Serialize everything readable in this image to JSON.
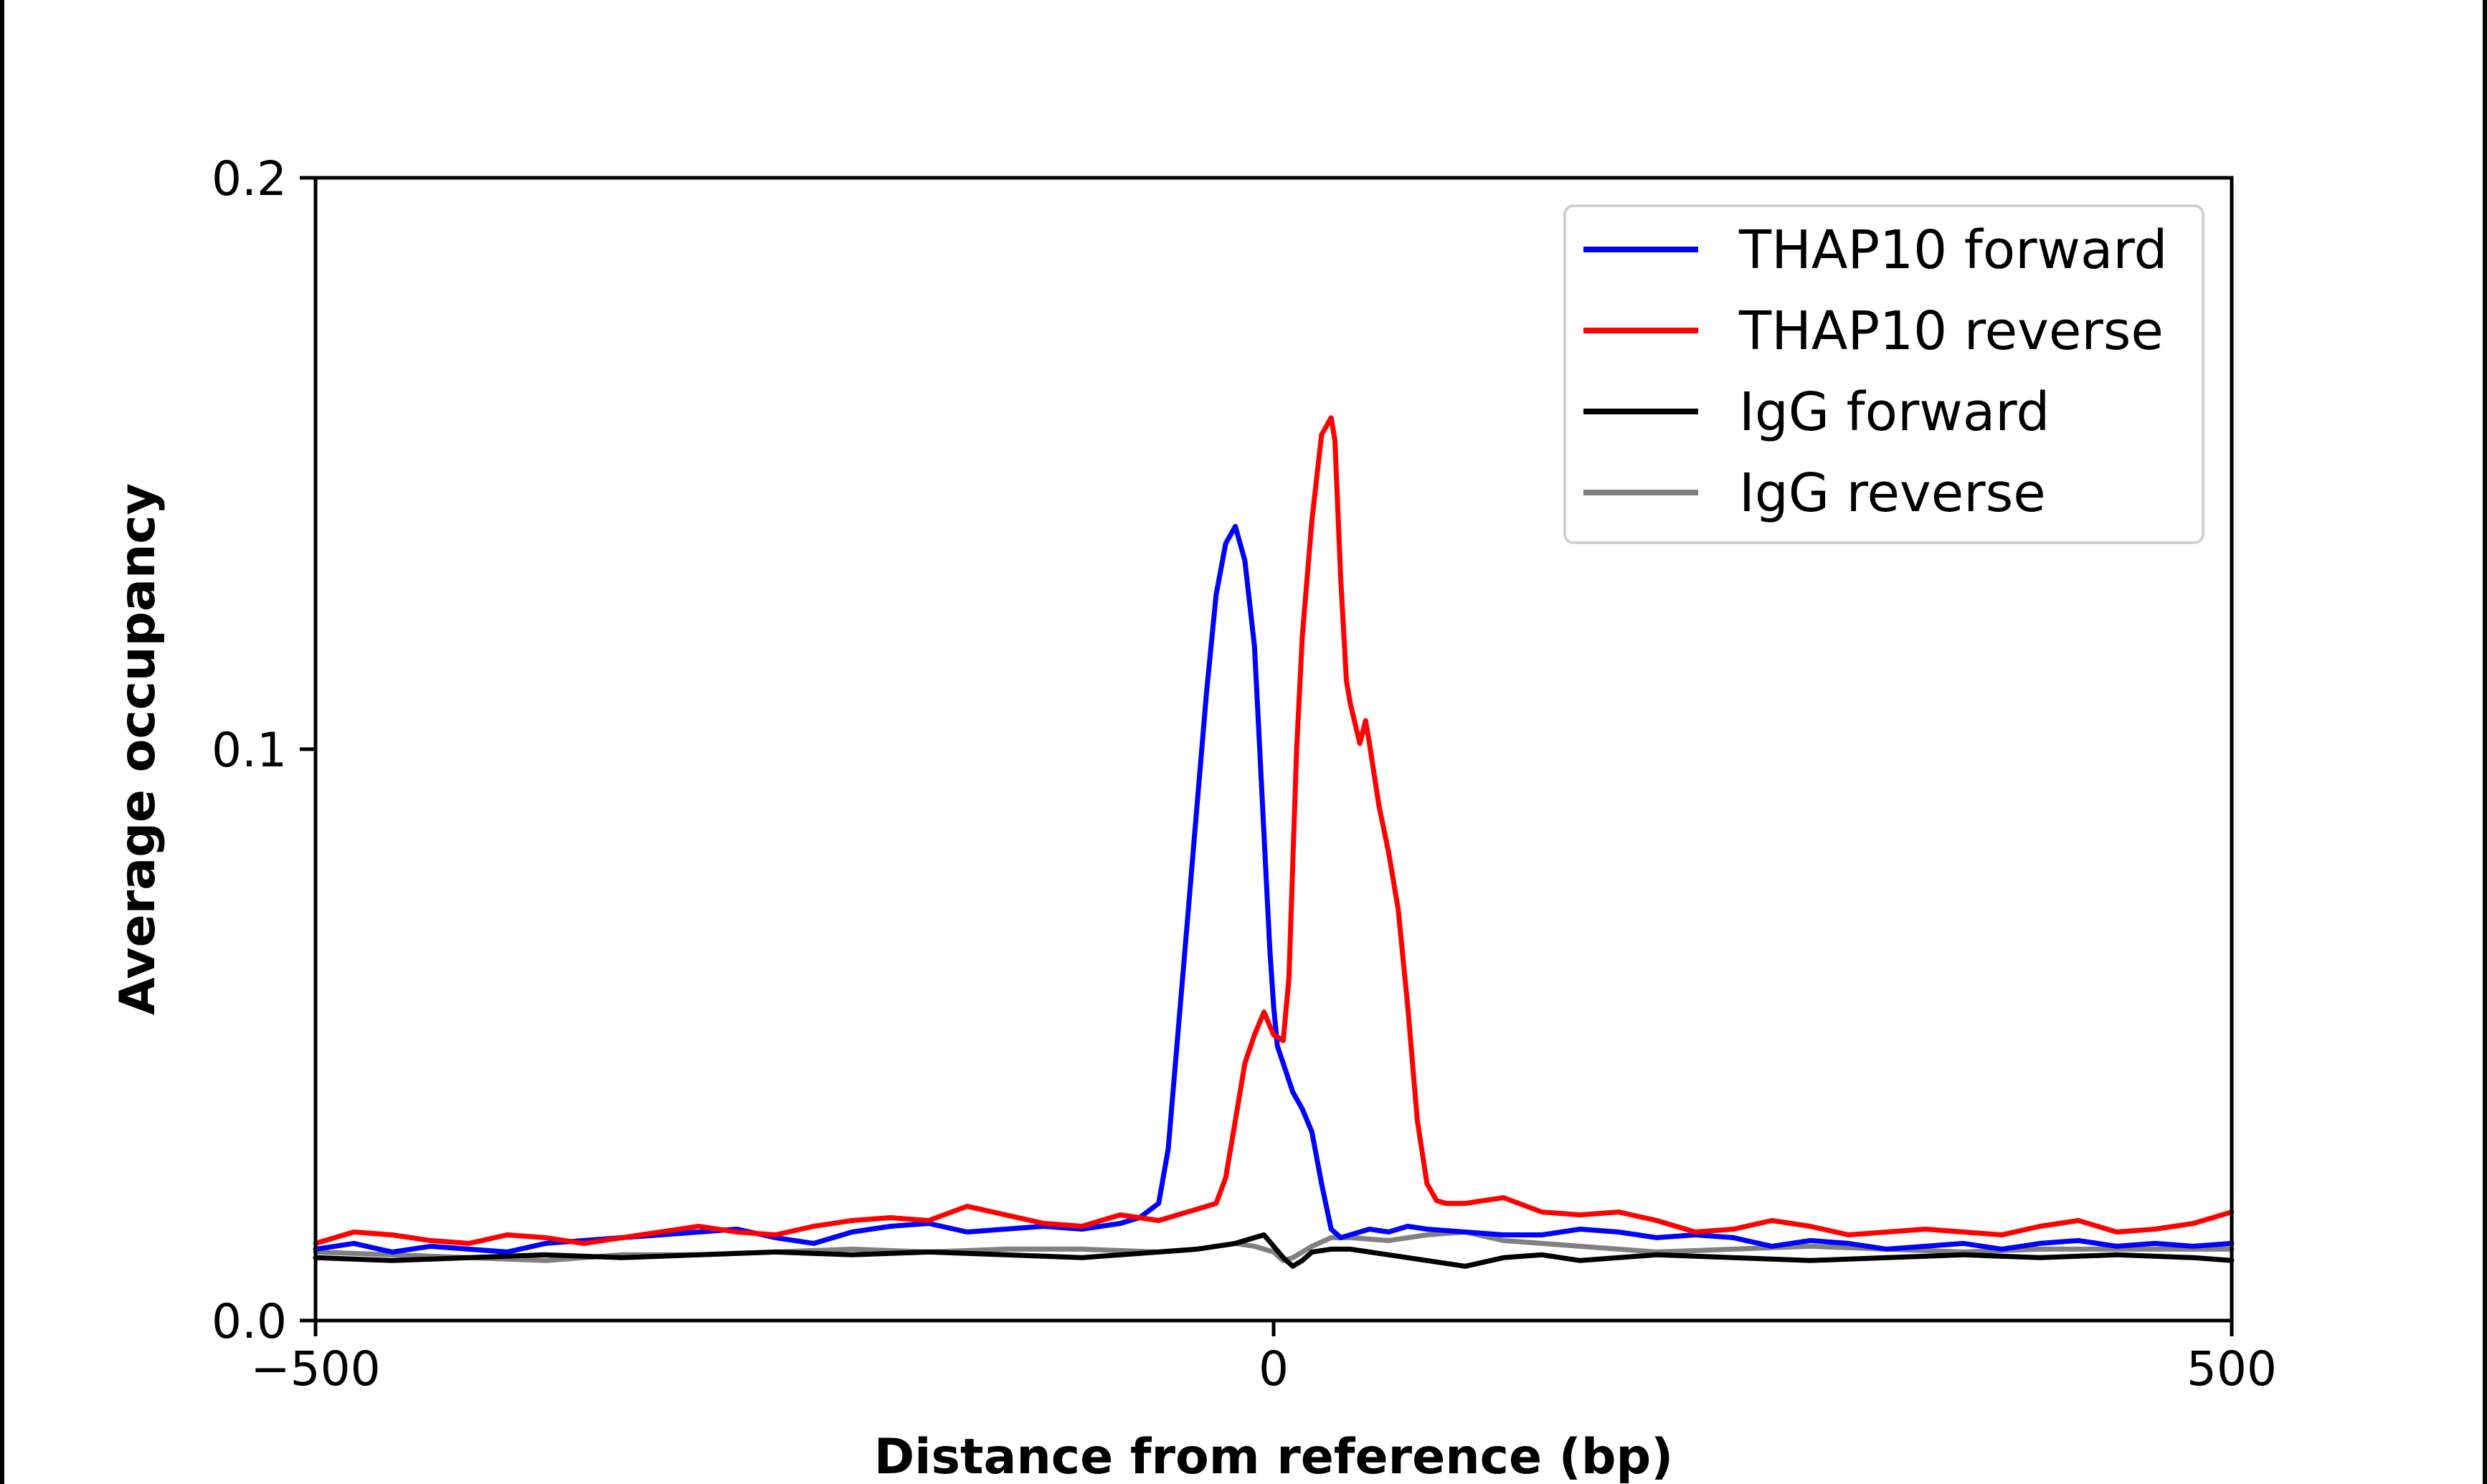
{
  "chart_data": {
    "type": "line",
    "title": "",
    "xlabel": "Distance from reference (bp)",
    "ylabel": "Average occupancy",
    "xlim": [
      -500,
      500
    ],
    "ylim": [
      0,
      0.2
    ],
    "xticks": [
      {
        "value": -500,
        "label": "−500"
      },
      {
        "value": 0,
        "label": "0"
      },
      {
        "value": 500,
        "label": "500"
      }
    ],
    "yticks": [
      {
        "value": 0,
        "label": "0.0"
      },
      {
        "value": 0.1,
        "label": "0.1"
      },
      {
        "value": 0.2,
        "label": "0.2"
      }
    ],
    "grid": false,
    "legend_position": "top-right",
    "series": [
      {
        "name": "THAP10 forward",
        "color": "#0000ff",
        "x": [
          -500,
          -480,
          -460,
          -440,
          -420,
          -400,
          -380,
          -360,
          -340,
          -320,
          -300,
          -280,
          -260,
          -240,
          -220,
          -200,
          -180,
          -160,
          -140,
          -120,
          -100,
          -90,
          -80,
          -70,
          -60,
          -55,
          -50,
          -45,
          -40,
          -35,
          -30,
          -25,
          -20,
          -15,
          -10,
          -8,
          -5,
          -2,
          0,
          2,
          5,
          8,
          10,
          15,
          20,
          25,
          30,
          35,
          40,
          45,
          50,
          60,
          70,
          80,
          100,
          120,
          140,
          160,
          180,
          200,
          220,
          240,
          260,
          280,
          300,
          320,
          340,
          360,
          380,
          400,
          420,
          440,
          460,
          480,
          500
        ],
        "y": [
          0.0125,
          0.0135,
          0.012,
          0.013,
          0.0125,
          0.012,
          0.0135,
          0.014,
          0.0145,
          0.015,
          0.0155,
          0.016,
          0.0145,
          0.0135,
          0.0155,
          0.0165,
          0.017,
          0.0155,
          0.016,
          0.0165,
          0.016,
          0.0165,
          0.017,
          0.018,
          0.0205,
          0.03,
          0.05,
          0.07,
          0.09,
          0.11,
          0.127,
          0.136,
          0.139,
          0.133,
          0.118,
          0.105,
          0.085,
          0.065,
          0.055,
          0.048,
          0.045,
          0.042,
          0.04,
          0.037,
          0.033,
          0.024,
          0.016,
          0.0145,
          0.015,
          0.0155,
          0.016,
          0.0155,
          0.0165,
          0.016,
          0.0155,
          0.015,
          0.015,
          0.016,
          0.0155,
          0.0145,
          0.015,
          0.0145,
          0.013,
          0.014,
          0.0135,
          0.0125,
          0.013,
          0.0135,
          0.0125,
          0.0135,
          0.014,
          0.013,
          0.0135,
          0.013,
          0.0135
        ]
      },
      {
        "name": "THAP10 reverse",
        "color": "#ff0000",
        "x": [
          -500,
          -480,
          -460,
          -440,
          -420,
          -400,
          -380,
          -360,
          -340,
          -320,
          -300,
          -280,
          -260,
          -240,
          -220,
          -200,
          -180,
          -160,
          -140,
          -120,
          -100,
          -90,
          -80,
          -70,
          -60,
          -50,
          -40,
          -30,
          -25,
          -20,
          -15,
          -10,
          -5,
          0,
          5,
          8,
          10,
          12,
          15,
          20,
          25,
          30,
          32,
          35,
          38,
          40,
          45,
          48,
          50,
          55,
          60,
          65,
          70,
          75,
          80,
          85,
          90,
          100,
          120,
          140,
          160,
          180,
          200,
          220,
          240,
          260,
          280,
          300,
          320,
          340,
          360,
          380,
          400,
          420,
          440,
          460,
          480,
          500
        ],
        "y": [
          0.0135,
          0.0155,
          0.015,
          0.014,
          0.0135,
          0.015,
          0.0145,
          0.0135,
          0.0145,
          0.0155,
          0.0165,
          0.0155,
          0.015,
          0.0165,
          0.0175,
          0.018,
          0.0175,
          0.02,
          0.0185,
          0.017,
          0.0165,
          0.0175,
          0.0185,
          0.018,
          0.0175,
          0.0185,
          0.0195,
          0.0205,
          0.025,
          0.035,
          0.045,
          0.05,
          0.054,
          0.05,
          0.049,
          0.06,
          0.08,
          0.1,
          0.12,
          0.14,
          0.155,
          0.158,
          0.154,
          0.13,
          0.112,
          0.108,
          0.101,
          0.105,
          0.101,
          0.09,
          0.082,
          0.072,
          0.055,
          0.035,
          0.024,
          0.021,
          0.0205,
          0.0205,
          0.0215,
          0.019,
          0.0185,
          0.019,
          0.0175,
          0.0155,
          0.016,
          0.0175,
          0.0165,
          0.015,
          0.0155,
          0.016,
          0.0155,
          0.015,
          0.0165,
          0.0175,
          0.0155,
          0.016,
          0.017,
          0.019
        ]
      },
      {
        "name": "IgG forward",
        "color": "#000000",
        "x": [
          -500,
          -460,
          -420,
          -380,
          -340,
          -300,
          -260,
          -220,
          -180,
          -140,
          -100,
          -60,
          -40,
          -20,
          -10,
          -5,
          0,
          5,
          10,
          15,
          20,
          30,
          40,
          60,
          80,
          100,
          120,
          140,
          160,
          200,
          240,
          280,
          320,
          360,
          400,
          440,
          480,
          500
        ],
        "y": [
          0.011,
          0.0105,
          0.011,
          0.0115,
          0.011,
          0.0115,
          0.012,
          0.0115,
          0.012,
          0.0115,
          0.011,
          0.012,
          0.0125,
          0.0135,
          0.0145,
          0.015,
          0.013,
          0.011,
          0.0095,
          0.0105,
          0.012,
          0.0125,
          0.0125,
          0.0115,
          0.0105,
          0.0095,
          0.011,
          0.0115,
          0.0105,
          0.0115,
          0.011,
          0.0105,
          0.011,
          0.0115,
          0.011,
          0.0115,
          0.011,
          0.0105
        ]
      },
      {
        "name": "IgG reverse",
        "color": "#808080",
        "x": [
          -500,
          -460,
          -420,
          -380,
          -340,
          -300,
          -260,
          -220,
          -180,
          -140,
          -100,
          -60,
          -40,
          -20,
          -10,
          -5,
          0,
          5,
          10,
          15,
          20,
          30,
          40,
          60,
          80,
          100,
          120,
          140,
          160,
          200,
          240,
          280,
          320,
          360,
          400,
          440,
          480,
          500
        ],
        "y": [
          0.012,
          0.0115,
          0.011,
          0.0105,
          0.0115,
          0.0115,
          0.012,
          0.0125,
          0.012,
          0.0125,
          0.0125,
          0.012,
          0.0125,
          0.0135,
          0.013,
          0.0125,
          0.012,
          0.0105,
          0.011,
          0.012,
          0.013,
          0.0145,
          0.0145,
          0.014,
          0.015,
          0.0155,
          0.014,
          0.0135,
          0.013,
          0.012,
          0.0125,
          0.013,
          0.0125,
          0.012,
          0.0125,
          0.0125,
          0.0125,
          0.0125
        ]
      }
    ]
  }
}
